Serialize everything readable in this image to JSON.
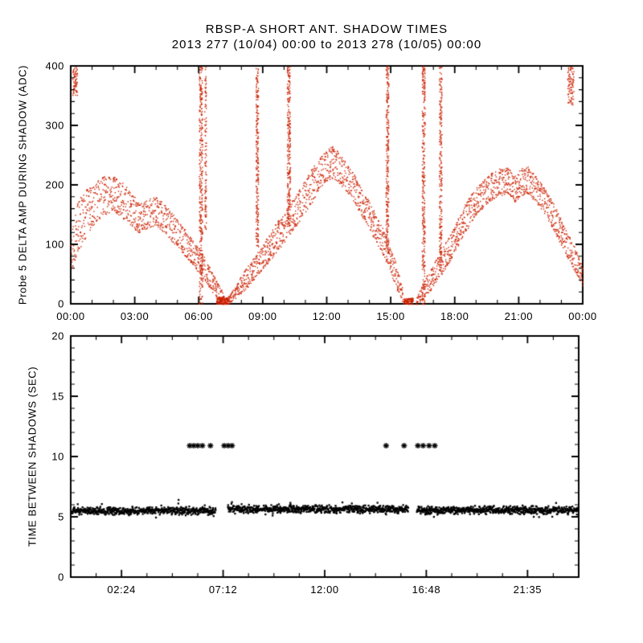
{
  "header": {
    "title": "RBSP-A SHORT ANT. SHADOW TIMES",
    "subtitle": "2013 277 (10/04) 00:00 to 2013 278 (10/05) 00:00"
  },
  "chart_data": [
    {
      "type": "scatter",
      "panel": "top",
      "title": "RBSP-A SHORT ANT. SHADOW TIMES",
      "subtitle": "2013 277 (10/04) 00:00 to 2013 278 (10/05) 00:00",
      "ylabel": "Probe 5 DELTA AMP DURING SHADOW (ADC)",
      "xlabel": "",
      "marker": "dot",
      "color": "#cc2200",
      "grid": false,
      "xlim_hours": [
        0,
        24
      ],
      "ylim": [
        0,
        400
      ],
      "y_major_ticks": [
        0,
        100,
        200,
        300,
        400
      ],
      "y_minor_step": 20,
      "x_minor_step_hours": 1,
      "x_major_ticks": [
        {
          "hour": 0,
          "label": "00:00"
        },
        {
          "hour": 3,
          "label": "03:00"
        },
        {
          "hour": 6,
          "label": "06:00"
        },
        {
          "hour": 9,
          "label": "09:00"
        },
        {
          "hour": 12,
          "label": "12:00"
        },
        {
          "hour": 15,
          "label": "15:00"
        },
        {
          "hour": 18,
          "label": "18:00"
        },
        {
          "hour": 21,
          "label": "21:00"
        },
        {
          "hour": 24,
          "label": "00:00"
        }
      ],
      "band_series": [
        {
          "name": "shadow-arch-1",
          "samples": [
            [
              0.0,
              55,
              120
            ],
            [
              0.3,
              85,
              170
            ],
            [
              0.6,
              105,
              190
            ],
            [
              1.0,
              130,
              200
            ],
            [
              1.5,
              150,
              215
            ],
            [
              2.0,
              155,
              215
            ],
            [
              2.4,
              145,
              205
            ],
            [
              2.8,
              132,
              188
            ],
            [
              3.2,
              118,
              170
            ],
            [
              3.6,
              128,
              178
            ],
            [
              4.0,
              132,
              180
            ],
            [
              4.4,
              118,
              168
            ],
            [
              4.8,
              102,
              150
            ],
            [
              5.2,
              88,
              132
            ],
            [
              5.6,
              70,
              112
            ],
            [
              6.0,
              52,
              95
            ],
            [
              6.4,
              32,
              70
            ],
            [
              6.8,
              12,
              42
            ],
            [
              7.1,
              0,
              20
            ],
            [
              7.3,
              0,
              10
            ]
          ]
        },
        {
          "name": "shadow-arch-2",
          "samples": [
            [
              7.35,
              0,
              12
            ],
            [
              7.7,
              6,
              30
            ],
            [
              8.1,
              20,
              55
            ],
            [
              8.5,
              38,
              75
            ],
            [
              8.9,
              55,
              95
            ],
            [
              9.3,
              72,
              118
            ],
            [
              9.7,
              90,
              140
            ],
            [
              10.1,
              108,
              160
            ],
            [
              10.5,
              128,
              182
            ],
            [
              10.9,
              150,
              205
            ],
            [
              11.3,
              172,
              228
            ],
            [
              11.7,
              195,
              248
            ],
            [
              12.0,
              208,
              262
            ],
            [
              12.3,
              212,
              265
            ],
            [
              12.6,
              202,
              252
            ],
            [
              13.0,
              185,
              232
            ],
            [
              13.4,
              162,
              210
            ],
            [
              13.8,
              138,
              185
            ],
            [
              14.2,
              112,
              158
            ],
            [
              14.6,
              85,
              128
            ],
            [
              15.0,
              52,
              95
            ],
            [
              15.3,
              22,
              60
            ],
            [
              15.55,
              2,
              25
            ]
          ]
        },
        {
          "name": "shadow-arch-3",
          "samples": [
            [
              16.2,
              0,
              14
            ],
            [
              16.5,
              8,
              36
            ],
            [
              16.9,
              25,
              62
            ],
            [
              17.3,
              45,
              88
            ],
            [
              17.7,
              68,
              112
            ],
            [
              18.1,
              95,
              140
            ],
            [
              18.5,
              122,
              168
            ],
            [
              18.9,
              145,
              192
            ],
            [
              19.3,
              162,
              208
            ],
            [
              19.7,
              175,
              220
            ],
            [
              20.1,
              182,
              228
            ],
            [
              20.5,
              185,
              230
            ],
            [
              20.8,
              172,
              215
            ],
            [
              21.1,
              182,
              228
            ],
            [
              21.4,
              186,
              232
            ],
            [
              21.8,
              172,
              215
            ],
            [
              22.2,
              152,
              196
            ],
            [
              22.6,
              125,
              170
            ],
            [
              23.0,
              98,
              142
            ],
            [
              23.4,
              68,
              110
            ],
            [
              23.8,
              42,
              80
            ],
            [
              24.0,
              30,
              62
            ]
          ]
        }
      ],
      "spike_series": [
        {
          "hour": 6.08,
          "width": 0.16,
          "lo": 0,
          "hi": 400,
          "count": 320
        },
        {
          "hour": 6.3,
          "width": 0.08,
          "lo": 120,
          "hi": 400,
          "count": 110
        },
        {
          "hour": 8.72,
          "width": 0.12,
          "lo": 95,
          "hi": 400,
          "count": 230
        },
        {
          "hour": 10.2,
          "width": 0.15,
          "lo": 130,
          "hi": 400,
          "count": 260
        },
        {
          "hour": 14.82,
          "width": 0.13,
          "lo": 85,
          "hi": 400,
          "count": 250
        },
        {
          "hour": 16.52,
          "width": 0.14,
          "lo": 0,
          "hi": 400,
          "count": 300
        },
        {
          "hour": 17.32,
          "width": 0.12,
          "lo": 60,
          "hi": 400,
          "count": 230
        }
      ],
      "cluster_series": [
        {
          "hour": 0.18,
          "width": 0.22,
          "lo": 350,
          "hi": 400,
          "count": 70
        },
        {
          "hour": 23.42,
          "width": 0.3,
          "lo": 335,
          "hi": 400,
          "count": 90
        },
        {
          "hour": 7.1,
          "width": 0.55,
          "lo": 0,
          "hi": 12,
          "count": 130
        },
        {
          "hour": 15.8,
          "width": 0.45,
          "lo": 0,
          "hi": 10,
          "count": 110
        }
      ]
    },
    {
      "type": "scatter",
      "panel": "bottom",
      "title": "",
      "ylabel": "TIME BETWEEN SHADOWS (SEC)",
      "xlabel": "",
      "marker": "asterisk",
      "color": "#000000",
      "grid": false,
      "xlim_hours": [
        0,
        24
      ],
      "ylim": [
        0,
        20
      ],
      "y_major_ticks": [
        0,
        5,
        10,
        15,
        20
      ],
      "y_minor_step": 1,
      "x_minor_step_hours": 1.2,
      "x_major_ticks": [
        {
          "hour": 2.4,
          "label": "02:24"
        },
        {
          "hour": 7.2,
          "label": "07:12"
        },
        {
          "hour": 12.0,
          "label": "12:00"
        },
        {
          "hour": 16.8,
          "label": "16:48"
        },
        {
          "hour": 21.583,
          "label": "21:35"
        }
      ],
      "band_halfwidth_sec": 0.32,
      "band_segments": [
        {
          "start_hour": 0.05,
          "end_hour": 6.85,
          "value_sec": 5.5
        },
        {
          "start_hour": 7.42,
          "end_hour": 15.95,
          "value_sec": 5.65
        },
        {
          "start_hour": 16.35,
          "end_hour": 23.95,
          "value_sec": 5.55
        }
      ],
      "outlier_value_sec": 10.9,
      "outlier_hours": [
        5.62,
        5.81,
        6.0,
        6.22,
        6.6,
        7.25,
        7.44,
        7.62,
        14.9,
        15.75,
        16.4,
        16.65,
        16.93,
        17.2
      ]
    }
  ]
}
